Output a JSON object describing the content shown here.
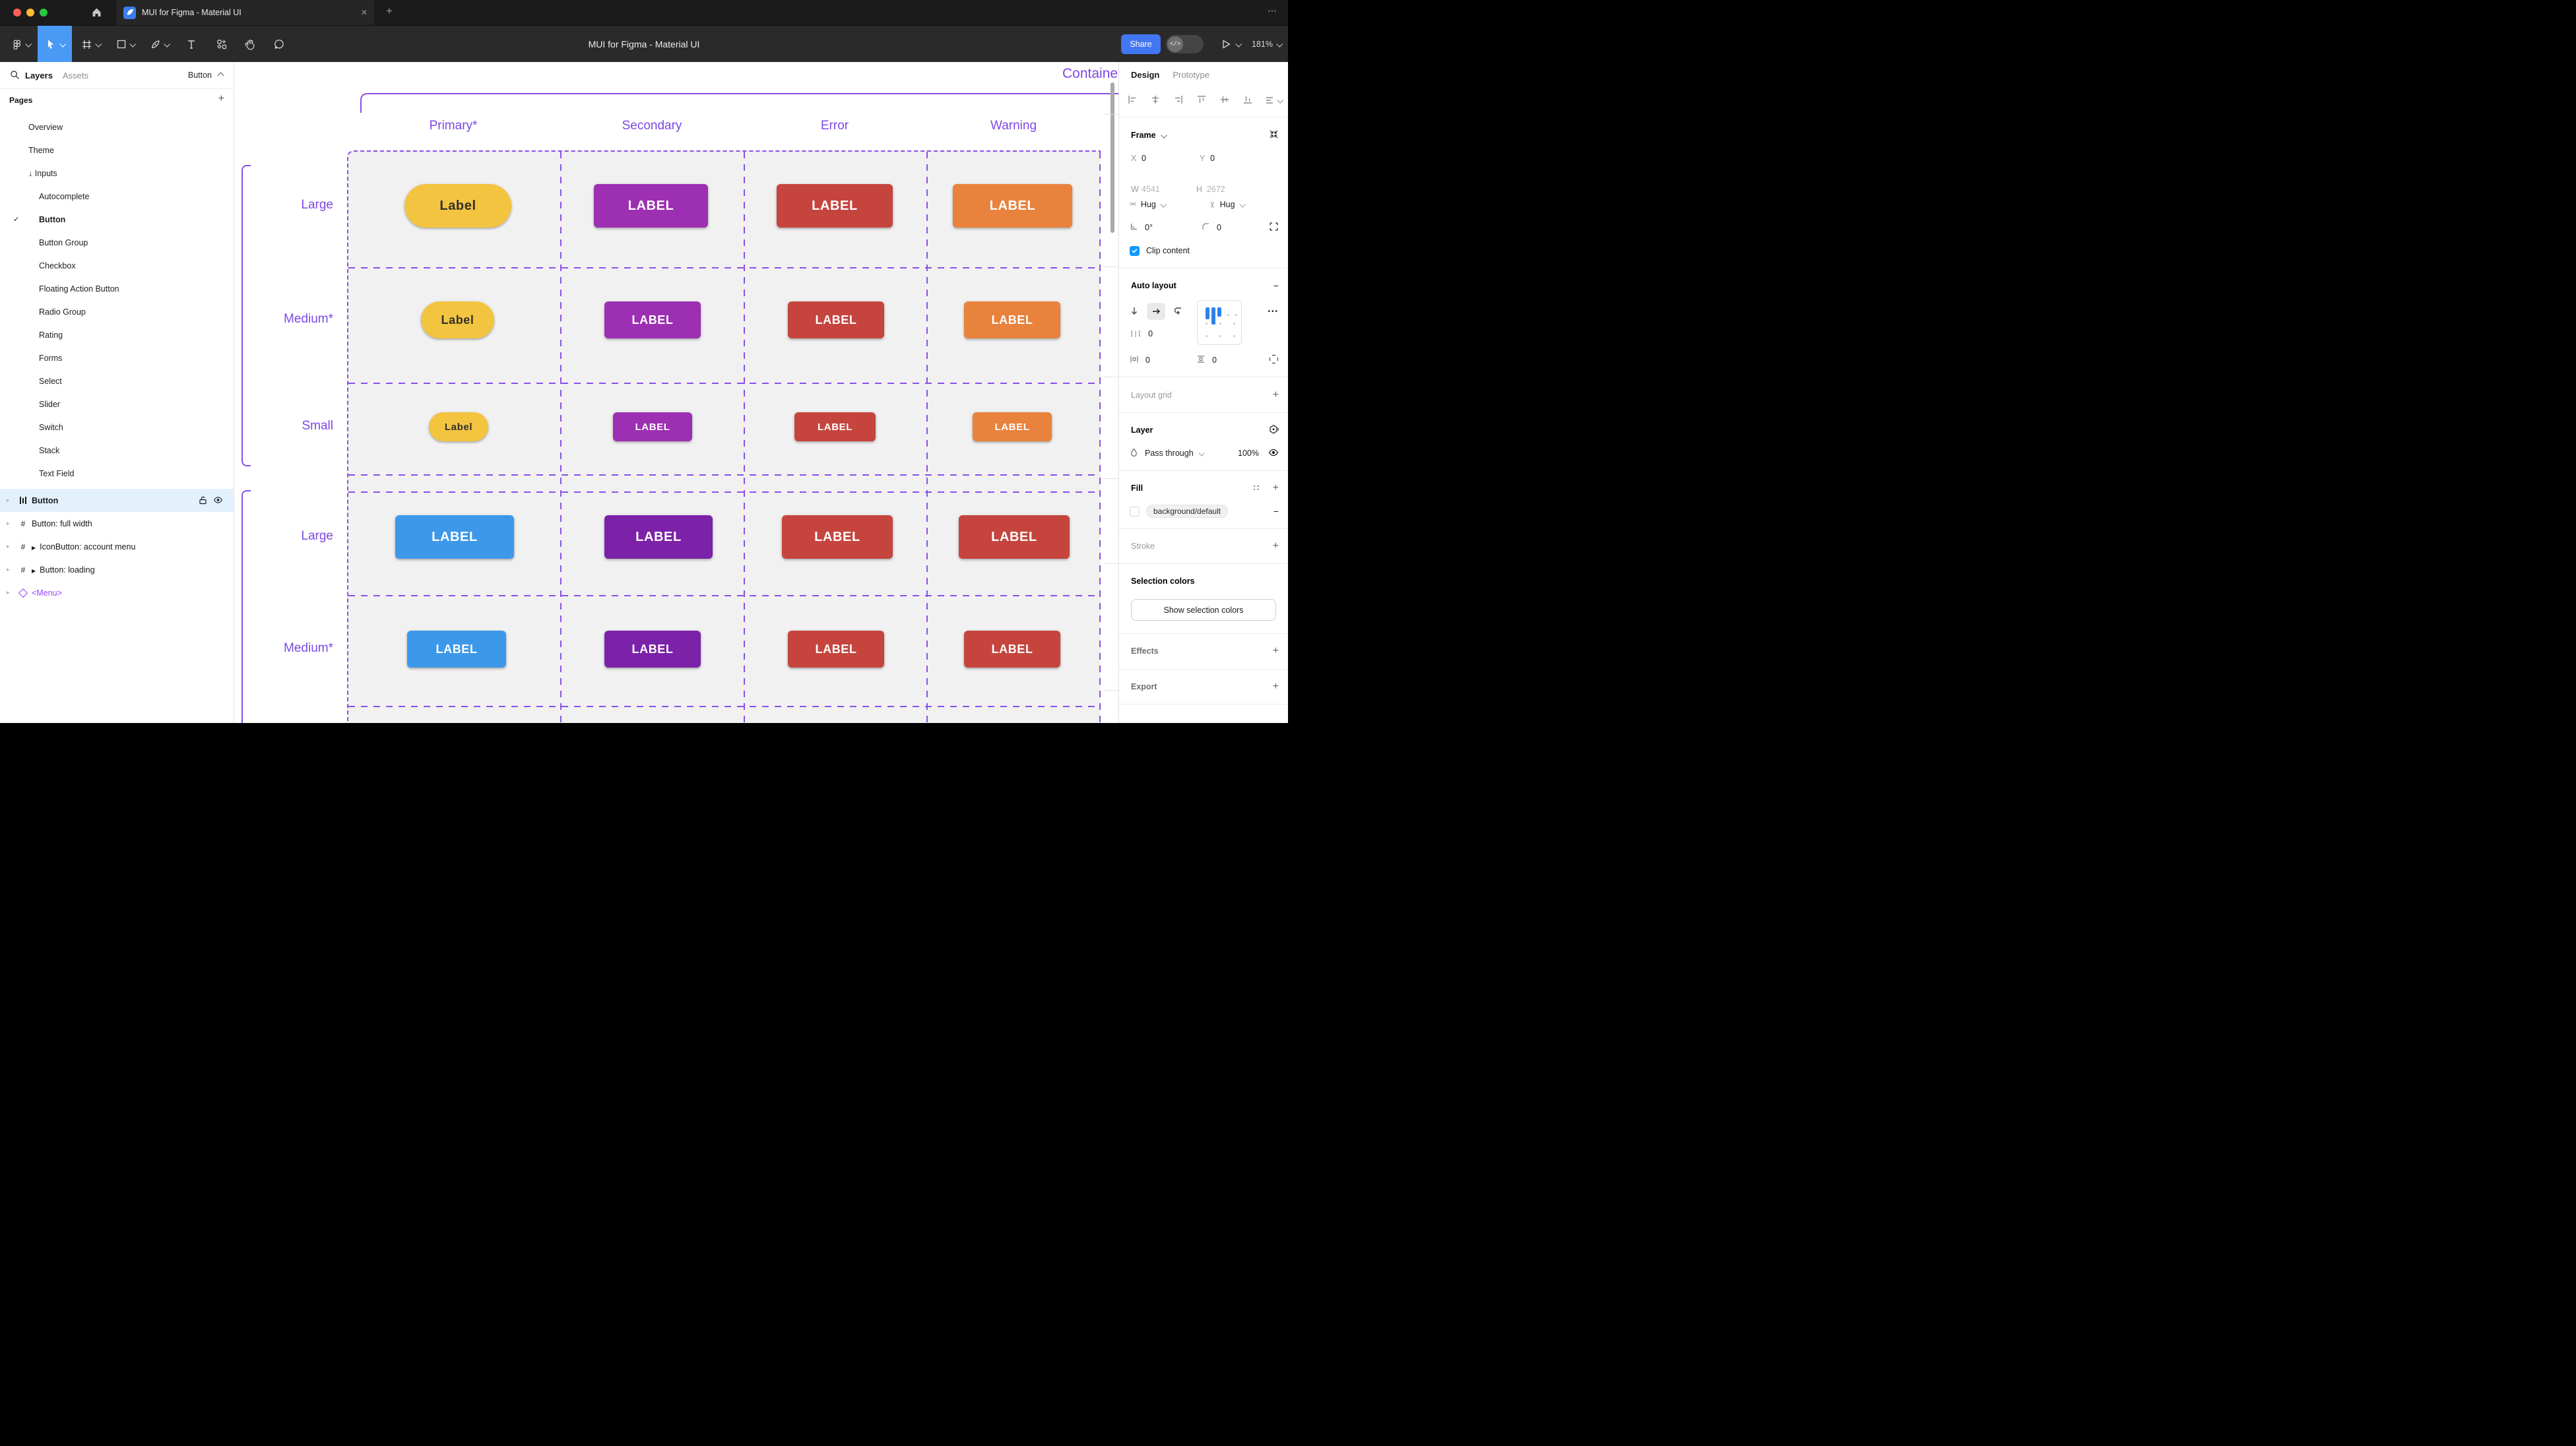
{
  "tabbar": {
    "tab_title": "MUI for Figma - Material UI",
    "close_glyph": "✕",
    "new_tab_glyph": "+",
    "overflow_glyph": "⋯"
  },
  "toolbar": {
    "document_title": "MUI for Figma - Material UI",
    "share_label": "Share",
    "dev_toggle_glyph": "</>",
    "zoom_level": "181%"
  },
  "left_sidebar": {
    "tabs": [
      {
        "label": "Layers",
        "active": true
      },
      {
        "label": "Assets",
        "active": false
      }
    ],
    "scope_selector": "Button",
    "pages_header": "Pages",
    "add_page_glyph": "+",
    "pages": [
      {
        "label": "Overview",
        "indent": 1
      },
      {
        "label": "Theme",
        "indent": 1
      },
      {
        "label": "Inputs",
        "indent": 1,
        "prefix": "↓"
      },
      {
        "label": "Autocomplete",
        "indent": 2
      },
      {
        "label": "Button",
        "indent": 2,
        "checked": true
      },
      {
        "label": "Button Group",
        "indent": 2
      },
      {
        "label": "Checkbox",
        "indent": 2
      },
      {
        "label": "Floating Action Button",
        "indent": 2
      },
      {
        "label": "Radio Group",
        "indent": 2
      },
      {
        "label": "Rating",
        "indent": 2
      },
      {
        "label": "Forms",
        "indent": 2
      },
      {
        "label": "Select",
        "indent": 2
      },
      {
        "label": "Slider",
        "indent": 2
      },
      {
        "label": "Switch",
        "indent": 2
      },
      {
        "label": "Stack",
        "indent": 2
      },
      {
        "label": "Text Field",
        "indent": 2
      }
    ],
    "layers": [
      {
        "label": "Button",
        "icon": "auto-layout",
        "selected": true
      },
      {
        "label": "Button: full width",
        "icon": "frame"
      },
      {
        "label": "IconButton: account menu",
        "icon": "frame",
        "instance": true
      },
      {
        "label": "Button: loading",
        "icon": "frame",
        "instance": true
      },
      {
        "label": "<Menu>",
        "icon": "component",
        "purple": true
      }
    ]
  },
  "canvas": {
    "frame_title": "Contained",
    "column_headers": [
      "Primary*",
      "Secondary",
      "Error",
      "Warning"
    ],
    "annotation_color": "#7C47E6",
    "guide_color": "#8A4FE8",
    "rows": [
      {
        "label": "Large",
        "buttons": [
          {
            "text": "Label",
            "bg": "#F3C43F",
            "fg": "#33302B",
            "pill": true
          },
          {
            "text": "LABEL",
            "bg": "#9C2FB2",
            "fg": "#FFFFFF"
          },
          {
            "text": "LABEL",
            "bg": "#C5453E",
            "fg": "#FFFFFF"
          },
          {
            "text": "LABEL",
            "bg": "#E8823C",
            "fg": "#FFFFFF"
          }
        ]
      },
      {
        "label": "Medium*",
        "buttons": [
          {
            "text": "Label",
            "bg": "#F3C43F",
            "fg": "#33302B",
            "pill": true
          },
          {
            "text": "LABEL",
            "bg": "#9C2FB2",
            "fg": "#FFFFFF"
          },
          {
            "text": "LABEL",
            "bg": "#C5453E",
            "fg": "#FFFFFF"
          },
          {
            "text": "LABEL",
            "bg": "#E8823C",
            "fg": "#FFFFFF"
          }
        ]
      },
      {
        "label": "Small",
        "buttons": [
          {
            "text": "Label",
            "bg": "#F3C43F",
            "fg": "#33302B",
            "pill": true
          },
          {
            "text": "LABEL",
            "bg": "#9C2FB2",
            "fg": "#FFFFFF"
          },
          {
            "text": "LABEL",
            "bg": "#C5453E",
            "fg": "#FFFFFF"
          },
          {
            "text": "LABEL",
            "bg": "#E8823C",
            "fg": "#FFFFFF"
          }
        ]
      },
      {
        "label": "Large",
        "buttons": [
          {
            "text": "LABEL",
            "bg": "#3D98EA",
            "fg": "#FFFFFF"
          },
          {
            "text": "LABEL",
            "bg": "#7B22A8",
            "fg": "#FFFFFF"
          },
          {
            "text": "LABEL",
            "bg": "#C5453E",
            "fg": "#FFFFFF"
          },
          {
            "text": "LABEL",
            "bg": "#C5453E",
            "fg": "#FFFFFF"
          }
        ]
      },
      {
        "label": "Medium*",
        "buttons": [
          {
            "text": "LABEL",
            "bg": "#3D98EA",
            "fg": "#FFFFFF"
          },
          {
            "text": "LABEL",
            "bg": "#7B22A8",
            "fg": "#FFFFFF"
          },
          {
            "text": "LABEL",
            "bg": "#C5453E",
            "fg": "#FFFFFF"
          },
          {
            "text": "LABEL",
            "bg": "#C5453E",
            "fg": "#FFFFFF"
          }
        ]
      }
    ]
  },
  "right_sidebar": {
    "tabs": [
      {
        "label": "Design",
        "active": true
      },
      {
        "label": "Prototype",
        "active": false
      }
    ],
    "frame": {
      "title": "Frame",
      "x_label": "X",
      "x_value": "0",
      "y_label": "Y",
      "y_value": "0",
      "w_label": "W",
      "w_value": "4541",
      "h_label": "H",
      "h_value": "2672",
      "hug_horizontal": "Hug",
      "hug_vertical": "Hug",
      "rotation": "0°",
      "corner_radius": "0",
      "clip_content_label": "Clip content",
      "clip_content_checked": true
    },
    "auto_layout": {
      "title": "Auto layout",
      "gap": "0",
      "horizontal_padding": "0",
      "vertical_padding": "0",
      "more_glyph": "•••"
    },
    "layout_grid": {
      "title": "Layout grid"
    },
    "layer": {
      "title": "Layer",
      "blend_mode": "Pass through",
      "opacity": "100%"
    },
    "fill": {
      "title": "Fill",
      "token": "background/default"
    },
    "stroke": {
      "title": "Stroke"
    },
    "selection_colors": {
      "title": "Selection colors",
      "button_label": "Show selection colors"
    },
    "effects": {
      "title": "Effects"
    },
    "export": {
      "title": "Export"
    }
  }
}
